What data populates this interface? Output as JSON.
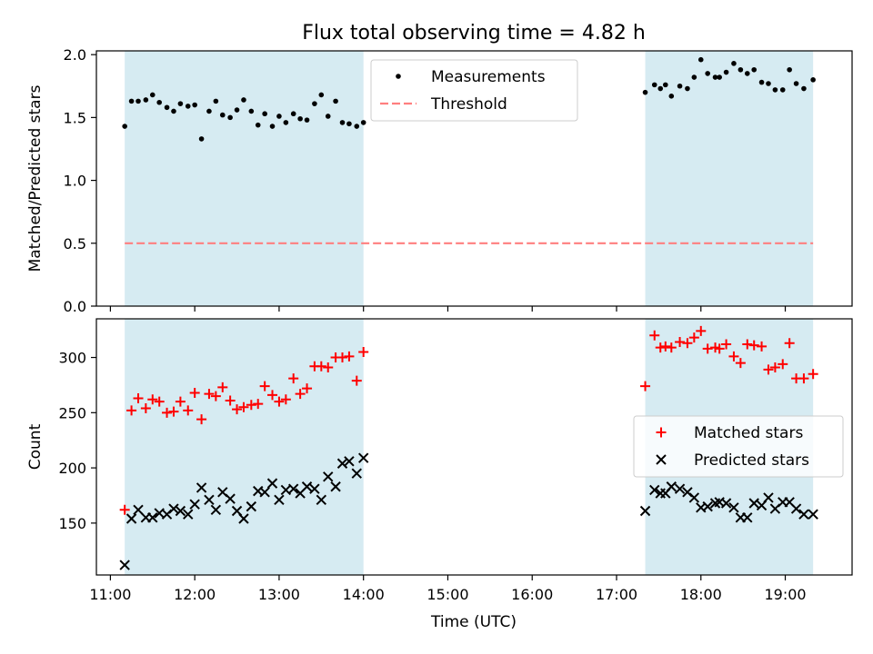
{
  "figure": {
    "title": "Flux total observing time = 4.82 h",
    "xlabel": "Time (UTC)",
    "xticks": [
      {
        "h": 11,
        "label": "11:00"
      },
      {
        "h": 12,
        "label": "12:00"
      },
      {
        "h": 13,
        "label": "13:00"
      },
      {
        "h": 14,
        "label": "14:00"
      },
      {
        "h": 15,
        "label": "15:00"
      },
      {
        "h": 16,
        "label": "16:00"
      },
      {
        "h": 17,
        "label": "17:00"
      },
      {
        "h": 18,
        "label": "18:00"
      },
      {
        "h": 19,
        "label": "19:00"
      }
    ],
    "xlim_hours": [
      10.834,
      19.792
    ],
    "shaded_intervals_hours": [
      [
        11.17,
        14.0
      ],
      [
        17.34,
        19.33
      ]
    ],
    "colors": {
      "shade": "#add8e6",
      "matched": "#ff0000",
      "predicted": "#000000",
      "measurement": "#000000",
      "threshold": "#ff7f7f"
    }
  },
  "chart_data": [
    {
      "type": "scatter",
      "ylabel": "Matched/Predicted stars",
      "ylim": [
        0.0,
        2.03
      ],
      "yticks": [
        {
          "v": 0.0,
          "label": "0.0"
        },
        {
          "v": 0.5,
          "label": "0.5"
        },
        {
          "v": 1.0,
          "label": "1.0"
        },
        {
          "v": 1.5,
          "label": "1.5"
        },
        {
          "v": 2.0,
          "label": "2.0"
        }
      ],
      "legend_position": "top-center",
      "series": [
        {
          "name": "Measurements",
          "x": [
            11.17,
            11.25,
            11.33,
            11.42,
            11.5,
            11.58,
            11.67,
            11.75,
            11.83,
            11.92,
            12.0,
            12.08,
            12.17,
            12.25,
            12.33,
            12.42,
            12.5,
            12.58,
            12.67,
            12.75,
            12.83,
            12.92,
            13.0,
            13.08,
            13.17,
            13.25,
            13.33,
            13.42,
            13.5,
            13.58,
            13.67,
            13.75,
            13.83,
            13.92,
            14.0,
            17.34,
            17.45,
            17.52,
            17.58,
            17.65,
            17.75,
            17.84,
            17.92,
            18.0,
            18.08,
            18.17,
            18.22,
            18.3,
            18.39,
            18.47,
            18.55,
            18.63,
            18.72,
            18.8,
            18.88,
            18.97,
            19.05,
            19.13,
            19.22,
            19.33
          ],
          "y": [
            1.43,
            1.63,
            1.63,
            1.64,
            1.68,
            1.62,
            1.58,
            1.55,
            1.61,
            1.59,
            1.6,
            1.33,
            1.55,
            1.63,
            1.52,
            1.5,
            1.56,
            1.64,
            1.55,
            1.44,
            1.53,
            1.43,
            1.51,
            1.46,
            1.53,
            1.49,
            1.48,
            1.61,
            1.68,
            1.51,
            1.63,
            1.46,
            1.45,
            1.43,
            1.46,
            1.7,
            1.76,
            1.73,
            1.76,
            1.67,
            1.75,
            1.73,
            1.82,
            1.96,
            1.85,
            1.82,
            1.82,
            1.86,
            1.93,
            1.88,
            1.85,
            1.88,
            1.78,
            1.77,
            1.72,
            1.72,
            1.88,
            1.77,
            1.73,
            1.8
          ]
        },
        {
          "name": "Threshold",
          "x": [
            11.17,
            19.33
          ],
          "y": [
            0.5,
            0.5
          ]
        }
      ]
    },
    {
      "type": "scatter",
      "ylabel": "Count",
      "ylim": [
        103,
        335
      ],
      "yticks": [
        {
          "v": 150,
          "label": "150"
        },
        {
          "v": 200,
          "label": "200"
        },
        {
          "v": 250,
          "label": "250"
        },
        {
          "v": 300,
          "label": "300"
        }
      ],
      "legend_position": "center-right",
      "series": [
        {
          "name": "Matched stars",
          "x": [
            11.17,
            11.25,
            11.33,
            11.42,
            11.5,
            11.58,
            11.67,
            11.75,
            11.83,
            11.92,
            12.0,
            12.08,
            12.17,
            12.25,
            12.33,
            12.42,
            12.5,
            12.58,
            12.67,
            12.75,
            12.83,
            12.92,
            13.0,
            13.08,
            13.17,
            13.25,
            13.33,
            13.42,
            13.5,
            13.58,
            13.67,
            13.75,
            13.83,
            13.92,
            14.0,
            17.34,
            17.45,
            17.52,
            17.58,
            17.65,
            17.75,
            17.84,
            17.92,
            18.0,
            18.08,
            18.17,
            18.22,
            18.3,
            18.39,
            18.47,
            18.55,
            18.63,
            18.72,
            18.8,
            18.88,
            18.97,
            19.05,
            19.13,
            19.22,
            19.33
          ],
          "y": [
            162,
            252,
            263,
            254,
            262,
            260,
            250,
            251,
            260,
            252,
            268,
            244,
            267,
            265,
            273,
            261,
            253,
            255,
            257,
            258,
            274,
            266,
            260,
            262,
            281,
            267,
            272,
            292,
            292,
            291,
            300,
            300,
            301,
            279,
            305,
            274,
            320,
            309,
            310,
            309,
            314,
            313,
            318,
            324,
            308,
            309,
            308,
            312,
            301,
            295,
            312,
            311,
            310,
            289,
            291,
            294,
            313,
            281,
            281,
            285
          ]
        },
        {
          "name": "Predicted stars",
          "x": [
            11.17,
            11.25,
            11.33,
            11.42,
            11.5,
            11.58,
            11.67,
            11.75,
            11.83,
            11.92,
            12.0,
            12.08,
            12.17,
            12.25,
            12.33,
            12.42,
            12.5,
            12.58,
            12.67,
            12.75,
            12.83,
            12.92,
            13.0,
            13.08,
            13.17,
            13.25,
            13.33,
            13.42,
            13.5,
            13.58,
            13.67,
            13.75,
            13.83,
            13.92,
            14.0,
            17.34,
            17.45,
            17.52,
            17.58,
            17.65,
            17.75,
            17.84,
            17.92,
            18.0,
            18.08,
            18.17,
            18.22,
            18.3,
            18.39,
            18.47,
            18.55,
            18.63,
            18.72,
            18.8,
            18.88,
            18.97,
            19.05,
            19.13,
            19.22,
            19.33
          ],
          "y": [
            112,
            154,
            162,
            155,
            155,
            159,
            158,
            163,
            161,
            158,
            167,
            182,
            171,
            162,
            178,
            172,
            161,
            154,
            165,
            179,
            178,
            186,
            171,
            180,
            181,
            177,
            183,
            181,
            171,
            192,
            183,
            204,
            206,
            195,
            209,
            161,
            180,
            177,
            177,
            183,
            181,
            178,
            173,
            164,
            165,
            168,
            169,
            168,
            164,
            155,
            155,
            168,
            166,
            173,
            163,
            169,
            169,
            163,
            158,
            158
          ]
        }
      ]
    }
  ]
}
